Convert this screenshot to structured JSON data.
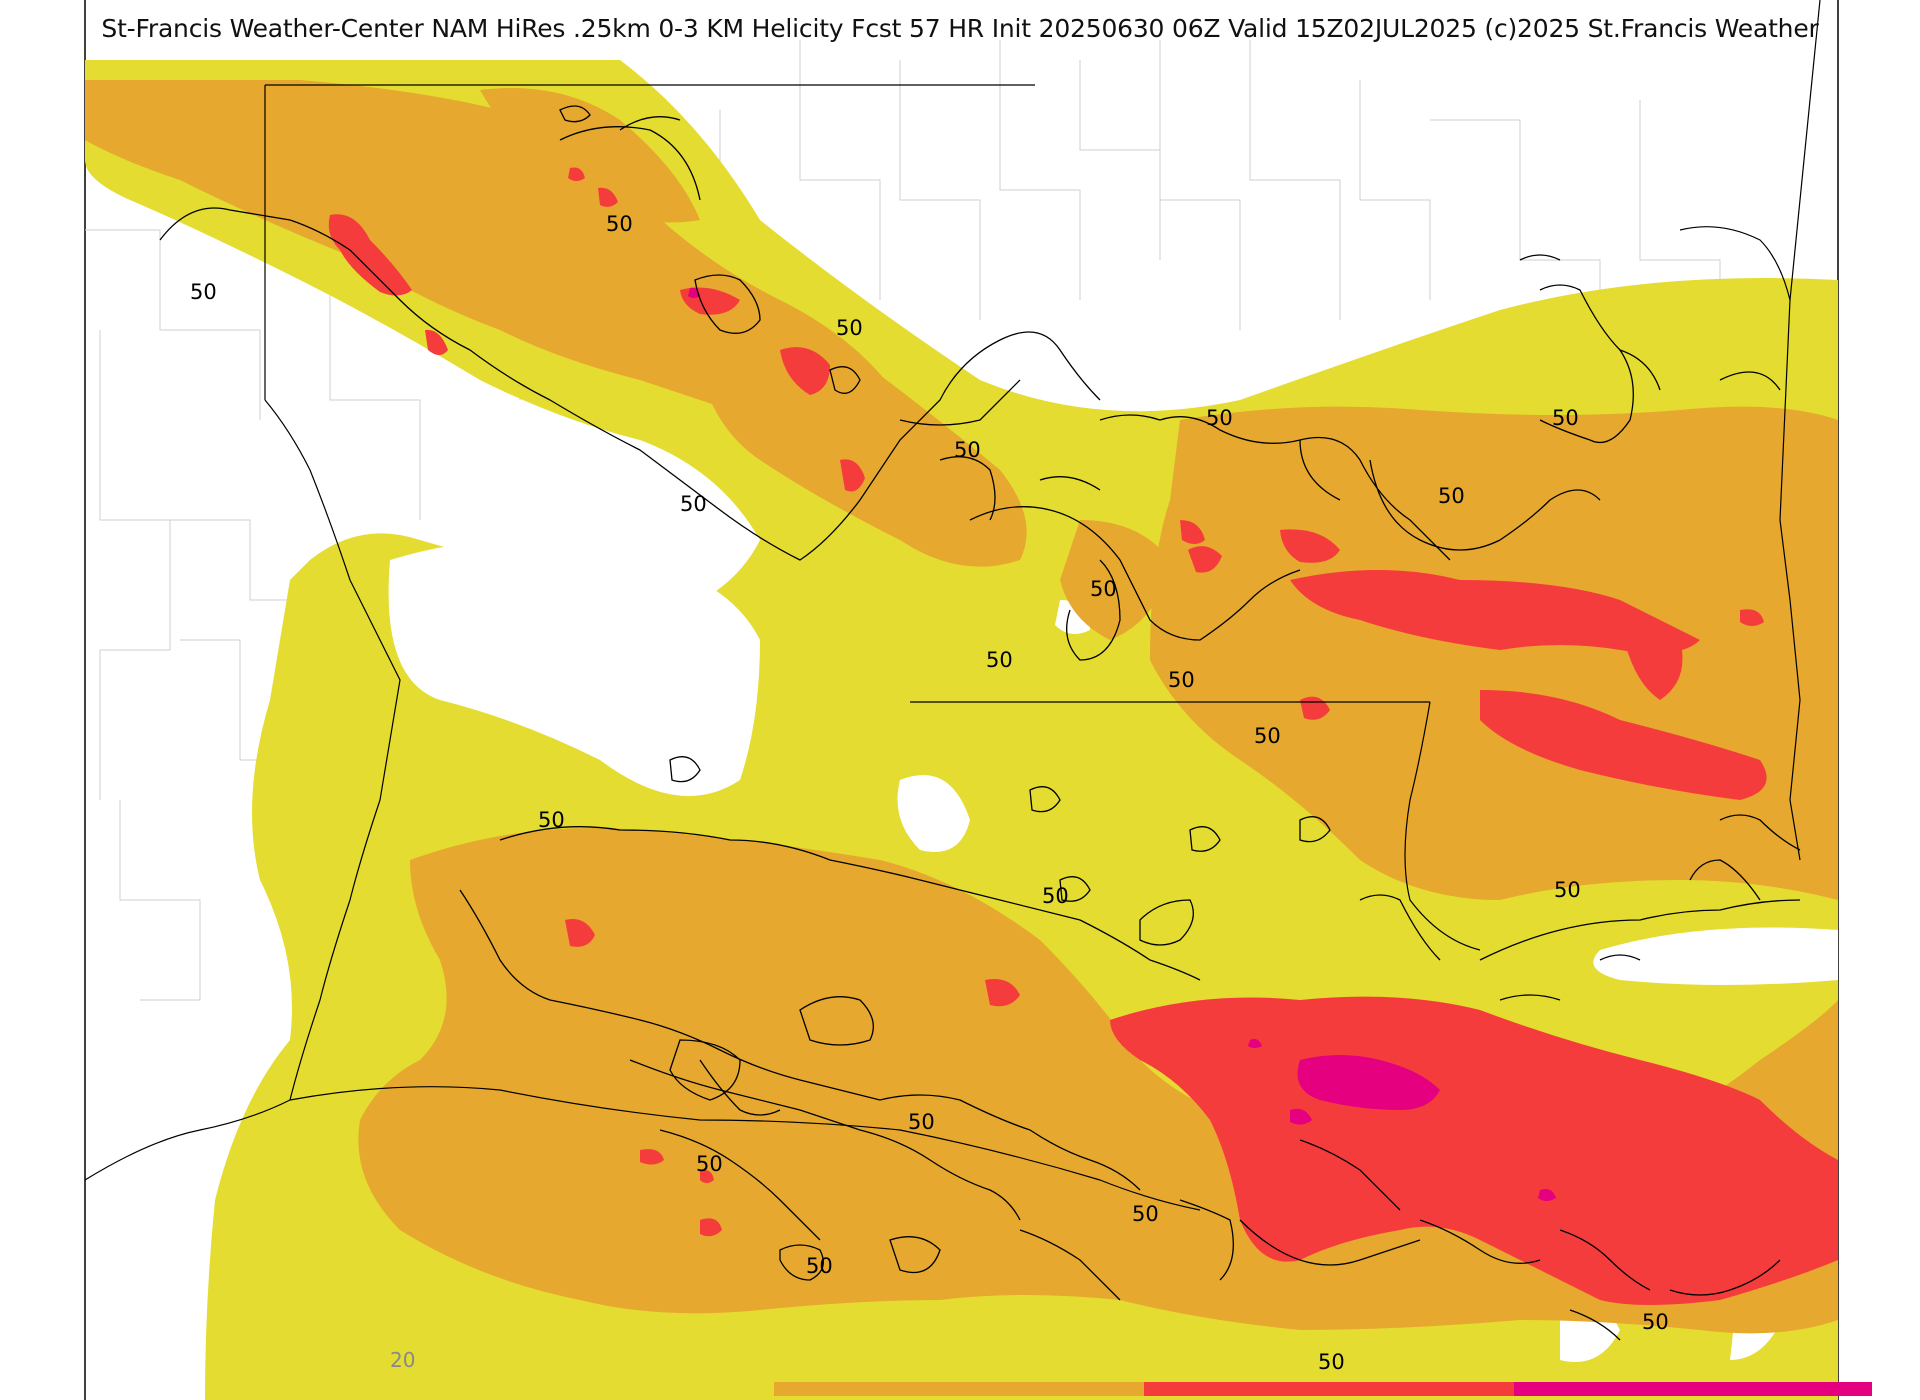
{
  "title": "St-Francis Weather-Center NAM HiRes .25km 0-3 KM Helicity Fcst 57 HR Init 20250630 06Z  Valid 15Z02JUL2025    (c)2025 St.Francis Weather",
  "contour_labels": [
    "50",
    "50",
    "50",
    "50",
    "50",
    "50",
    "50",
    "50",
    "50",
    "50",
    "50",
    "50",
    "50",
    "50",
    "50",
    "50",
    "50",
    "50",
    "50",
    "50",
    "50"
  ],
  "colorbar": {
    "tick_label": "20",
    "levels": [
      {
        "color": "#e4dc30"
      },
      {
        "color": "#e6a82e"
      },
      {
        "color": "#f53c3c"
      },
      {
        "color": "#e4007f"
      }
    ]
  },
  "colors": {
    "level_20": "#e4dc30",
    "level_50": "#e6a82e",
    "level_100": "#f53c3c",
    "level_150": "#e4007f",
    "contour": "#000000",
    "county_lines": "#c8c8c8"
  }
}
